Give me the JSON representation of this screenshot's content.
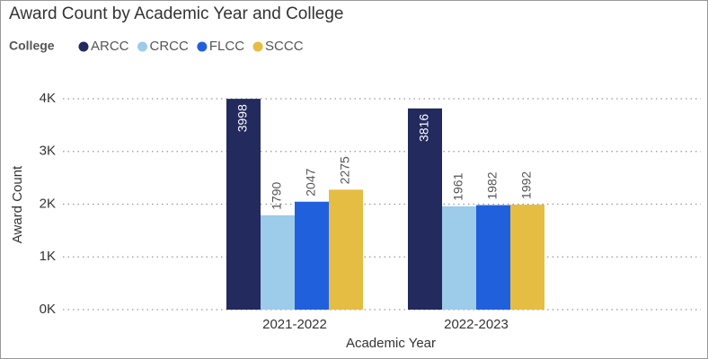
{
  "chart_data": {
    "type": "bar",
    "title": "Award Count by Academic Year and College",
    "legend_title": "College",
    "x_label": "Academic Year",
    "y_label": "Award Count",
    "categories": [
      "2021-2022",
      "2022-2023"
    ],
    "series": [
      {
        "name": "ARCC",
        "color": "#222a5e",
        "values": [
          3998,
          3816
        ]
      },
      {
        "name": "CRCC",
        "color": "#9dcbea",
        "values": [
          1790,
          1961
        ]
      },
      {
        "name": "FLCC",
        "color": "#2160dd",
        "values": [
          2047,
          1982
        ]
      },
      {
        "name": "SCCC",
        "color": "#e5bd42",
        "values": [
          2275,
          1992
        ]
      }
    ],
    "ylim": [
      0,
      4000
    ],
    "yticks": [
      {
        "value": 0,
        "label": "0K"
      },
      {
        "value": 1000,
        "label": "1K"
      },
      {
        "value": 2000,
        "label": "2K"
      },
      {
        "value": 3000,
        "label": "3K"
      },
      {
        "value": 4000,
        "label": "4K"
      }
    ],
    "grid": true
  }
}
